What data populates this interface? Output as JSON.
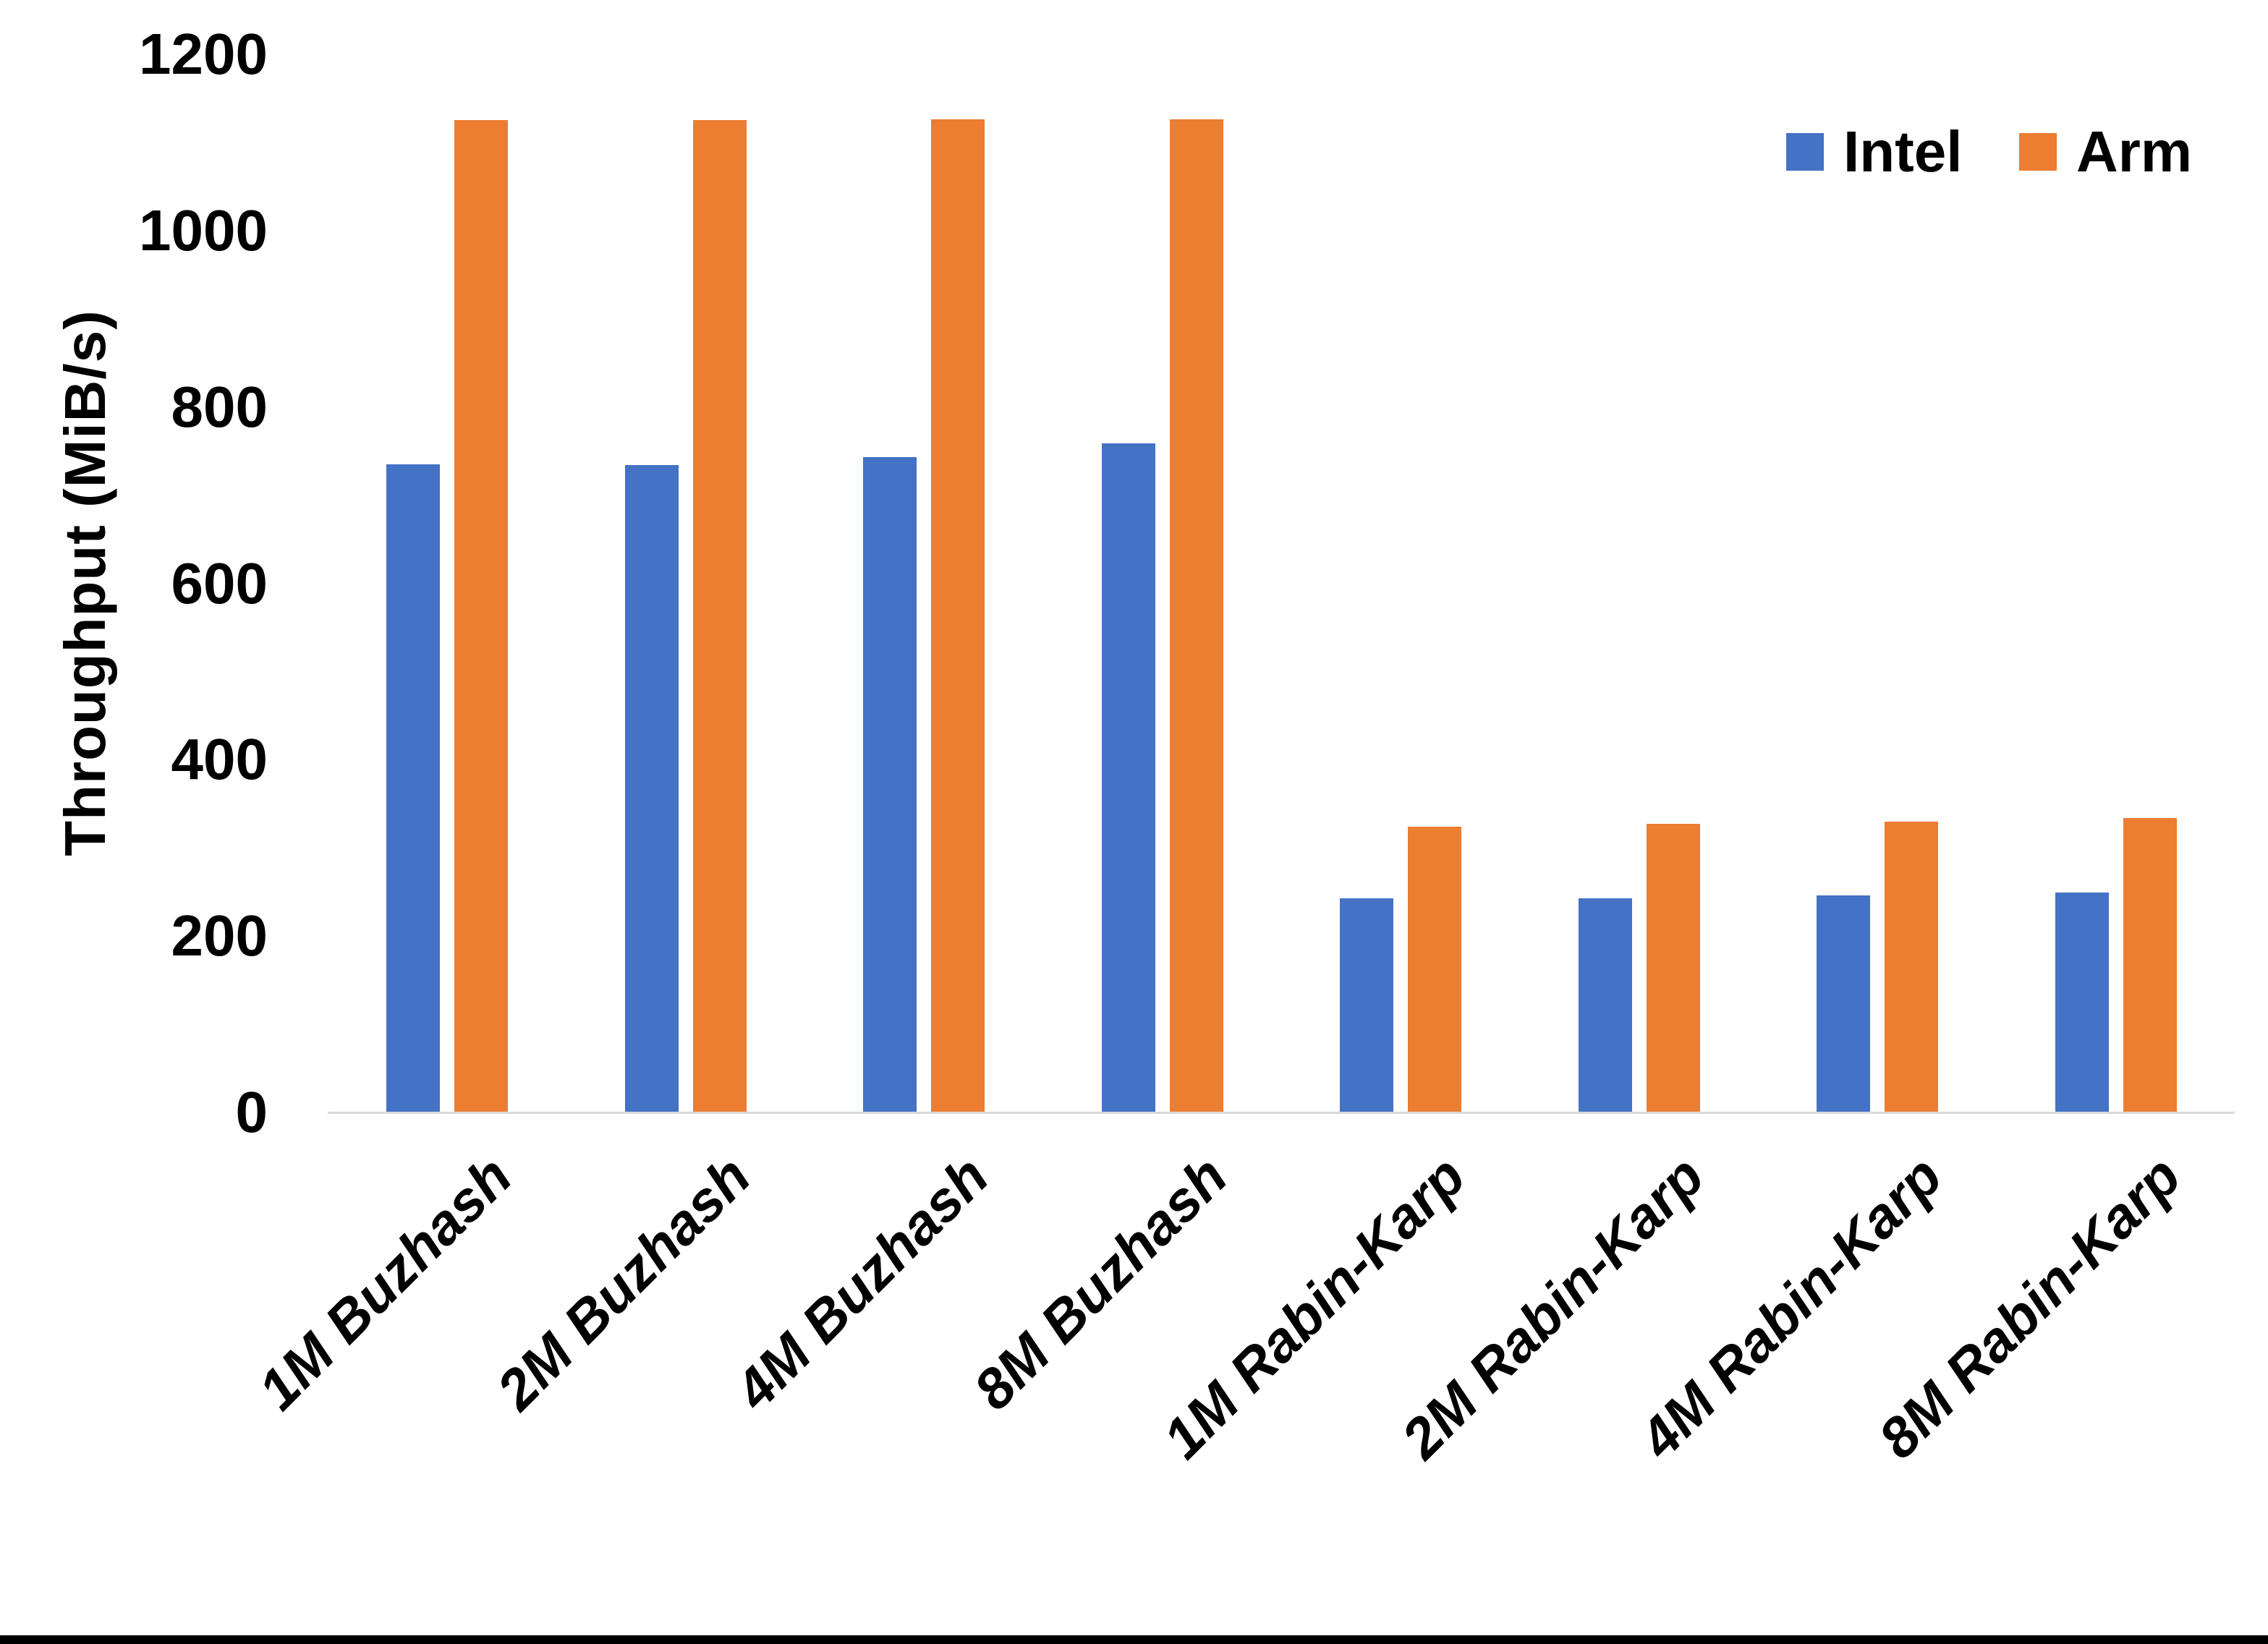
{
  "chart_data": {
    "type": "bar",
    "title": "",
    "categories": [
      "1M Buzhash",
      "2M Buzhash",
      "4M Buzhash",
      "8M Buzhash",
      "1M Rabin-Karp",
      "2M Rabin-Karp",
      "4M Rabin-Karp",
      "8M Rabin-Karp"
    ],
    "series": [
      {
        "name": "Intel",
        "color": "#4472C4",
        "values": [
          735,
          734,
          743,
          759,
          243,
          243,
          246,
          249
        ]
      },
      {
        "name": "Arm",
        "color": "#ED7D31",
        "values": [
          1125,
          1125,
          1126,
          1126,
          324,
          327,
          330,
          334
        ]
      }
    ],
    "xlabel": "",
    "ylabel": "Throughput (MiB/s)",
    "yticks": [
      0,
      200,
      400,
      600,
      800,
      1000,
      1200
    ],
    "ytick_labels": [
      "0",
      "200",
      "400",
      "600",
      "800",
      "1000",
      "1200"
    ],
    "ylim": [
      0,
      1200
    ],
    "grid": false,
    "legend_position": "top-right",
    "colors": {
      "intel_bar": "#4472C4",
      "arm_bar": "#ED7D31",
      "axis_line": "#D9D9D9",
      "text": "#000000",
      "bottom_border": "#000000",
      "background": "#FFFFFF"
    }
  }
}
